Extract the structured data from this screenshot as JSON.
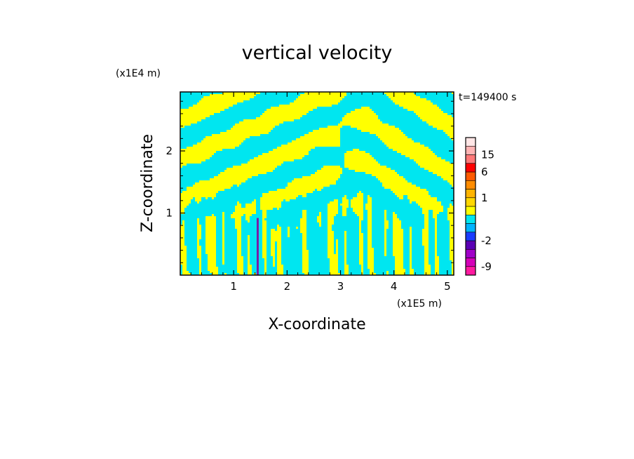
{
  "chart_data": {
    "type": "heatmap",
    "title": "vertical velocity",
    "xlabel": "X-coordinate",
    "ylabel": "Z-coordinate",
    "x_unit": "(x1E5 m)",
    "y_unit": "(x1E4 m)",
    "time_label": "t=149400 s",
    "xlim": [
      0,
      5.12
    ],
    "ylim": [
      0,
      2.95
    ],
    "x_ticks": [
      1,
      2,
      3,
      4,
      5
    ],
    "x_tick_labels": [
      "1",
      "2",
      "3",
      "4",
      "5"
    ],
    "y_ticks": [
      1,
      2
    ],
    "y_tick_labels": [
      "1",
      "2"
    ],
    "field_colors": {
      "negative": "#00e6f0",
      "positive": "#ffff00",
      "strong": "#7a1aa8"
    },
    "colorbar": {
      "levels": [
        "-12",
        "-9",
        "-6",
        "-4",
        "-2",
        "-1",
        "-0.5",
        "0",
        "0.5",
        "1",
        "2",
        "4",
        "6",
        "10",
        "15",
        "20",
        "25"
      ],
      "colors": [
        "#ff1aa0",
        "#d400b8",
        "#a000c8",
        "#5a00b4",
        "#1a3cff",
        "#00b4ff",
        "#00e6f0",
        "#ffff00",
        "#ffd700",
        "#ffb400",
        "#ff8c00",
        "#ff5a00",
        "#ff0000",
        "#ff7878",
        "#ffb4b4",
        "#ffe6e6"
      ],
      "tick_labels": [
        "15",
        "6",
        "1",
        "-2",
        "-9"
      ],
      "tick_values": [
        15,
        6,
        1,
        -2,
        -9
      ]
    }
  }
}
